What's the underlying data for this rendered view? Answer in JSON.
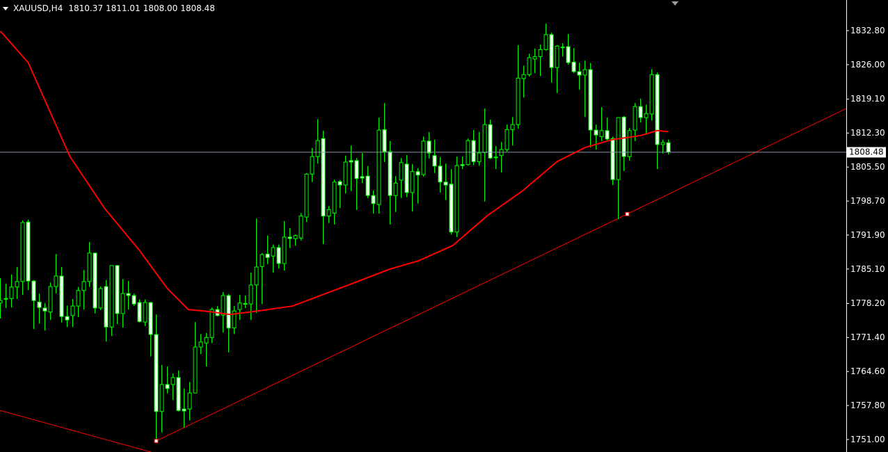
{
  "header": {
    "symbol": "XAUUSD,H4",
    "open": "1810.37",
    "high": "1811.01",
    "low": "1808.00",
    "close": "1808.48"
  },
  "price_axis": {
    "labels": [
      "1832.80",
      "1826.00",
      "1819.10",
      "1812.30",
      "1805.50",
      "1798.70",
      "1791.90",
      "1785.10",
      "1778.20",
      "1771.40",
      "1764.60",
      "1757.80",
      "1751.00"
    ],
    "current_price": "1808.48"
  },
  "colors": {
    "background": "#000000",
    "bull_outline": "#00ff00",
    "bear_fill": "#ffffff",
    "ma_line": "#ff0000",
    "trendline": "#ff0000",
    "bid_line": "#8a94a6",
    "axis": "#ffffff"
  },
  "icons": {
    "symbol_menu": "triangle-down-icon",
    "chart_shift": "chart-shift-marker-icon"
  },
  "chart_data": {
    "type": "candlestick",
    "symbol": "XAUUSD",
    "timeframe": "H4",
    "ylim": [
      1751.0,
      1832.8
    ],
    "grid": false,
    "candles_ohlc": [
      [
        1778.3,
        1783.3,
        1775.2,
        1778.8
      ],
      [
        1779.2,
        1782.2,
        1777.3,
        1779.2
      ],
      [
        1779.2,
        1784.0,
        1777.4,
        1781.5
      ],
      [
        1781.5,
        1785.5,
        1779.1,
        1782.6
      ],
      [
        1782.6,
        1794.8,
        1779.9,
        1794.4
      ],
      [
        1794.5,
        1795.0,
        1780.9,
        1782.7
      ],
      [
        1782.7,
        1782.9,
        1773.1,
        1778.8
      ],
      [
        1778.5,
        1780.2,
        1774.2,
        1777.4
      ],
      [
        1777.3,
        1778.3,
        1772.8,
        1776.7
      ],
      [
        1776.5,
        1782.4,
        1774.9,
        1781.6
      ],
      [
        1781.6,
        1788.1,
        1780.2,
        1783.7
      ],
      [
        1783.7,
        1785.5,
        1774.4,
        1775.6
      ],
      [
        1775.6,
        1777.8,
        1773.5,
        1774.9
      ],
      [
        1775.8,
        1779.1,
        1773.5,
        1777.7
      ],
      [
        1777.7,
        1781.5,
        1775.5,
        1780.8
      ],
      [
        1780.8,
        1784.9,
        1777.0,
        1782.6
      ],
      [
        1782.6,
        1790.5,
        1781.5,
        1788.3
      ],
      [
        1788.3,
        1788.3,
        1776.2,
        1777.3
      ],
      [
        1777.3,
        1781.6,
        1776.9,
        1781.2
      ],
      [
        1781.6,
        1782.9,
        1770.6,
        1773.5
      ],
      [
        1773.5,
        1785.8,
        1771.7,
        1785.8
      ],
      [
        1785.8,
        1785.9,
        1774.1,
        1776.2
      ],
      [
        1776.2,
        1783.1,
        1773.4,
        1780.2
      ],
      [
        1780.2,
        1782.7,
        1777.0,
        1779.8
      ],
      [
        1779.8,
        1780.2,
        1777.7,
        1778.1
      ],
      [
        1778.4,
        1779.0,
        1774.4,
        1774.6
      ],
      [
        1774.5,
        1779.0,
        1773.7,
        1778.4
      ],
      [
        1778.4,
        1778.5,
        1767.6,
        1772.0
      ],
      [
        1772.0,
        1776.0,
        1750.7,
        1756.6
      ],
      [
        1756.6,
        1765.9,
        1752.4,
        1762.0
      ],
      [
        1762.0,
        1765.6,
        1760.2,
        1761.2
      ],
      [
        1762.0,
        1764.2,
        1758.9,
        1763.4
      ],
      [
        1763.4,
        1764.8,
        1756.6,
        1756.8
      ],
      [
        1757.1,
        1761.2,
        1753.4,
        1756.7
      ],
      [
        1757.1,
        1762.5,
        1754.8,
        1760.3
      ],
      [
        1760.3,
        1774.5,
        1760.3,
        1769.5
      ],
      [
        1769.5,
        1772.1,
        1768.1,
        1770.5
      ],
      [
        1770.3,
        1772.3,
        1765.6,
        1771.4
      ],
      [
        1771.4,
        1777.4,
        1770.3,
        1777.0
      ],
      [
        1777.0,
        1777.7,
        1775.6,
        1775.8
      ],
      [
        1775.9,
        1780.5,
        1772.4,
        1779.8
      ],
      [
        1779.8,
        1780.1,
        1768.4,
        1773.3
      ],
      [
        1773.3,
        1777.7,
        1772.1,
        1776.7
      ],
      [
        1777.0,
        1779.9,
        1774.9,
        1778.3
      ],
      [
        1778.1,
        1779.8,
        1777.3,
        1778.2
      ],
      [
        1778.1,
        1784.4,
        1774.9,
        1781.9
      ],
      [
        1781.9,
        1795.2,
        1776.3,
        1785.5
      ],
      [
        1785.6,
        1788.3,
        1778.1,
        1788.0
      ],
      [
        1788.1,
        1791.8,
        1786.1,
        1787.4
      ],
      [
        1787.7,
        1790.0,
        1784.4,
        1789.4
      ],
      [
        1789.4,
        1790.0,
        1785.2,
        1786.2
      ],
      [
        1786.2,
        1794.7,
        1784.8,
        1791.5
      ],
      [
        1791.5,
        1793.3,
        1789.3,
        1791.2
      ],
      [
        1791.2,
        1792.0,
        1789.8,
        1791.8
      ],
      [
        1791.3,
        1796.3,
        1790.8,
        1795.7
      ],
      [
        1795.5,
        1804.3,
        1794.5,
        1804.1
      ],
      [
        1804.1,
        1809.3,
        1802.5,
        1807.6
      ],
      [
        1807.6,
        1815.1,
        1806.2,
        1810.8
      ],
      [
        1811.2,
        1812.8,
        1790.1,
        1795.7
      ],
      [
        1795.7,
        1797.7,
        1794.3,
        1797.0
      ],
      [
        1796.3,
        1803.0,
        1794.0,
        1802.5
      ],
      [
        1802.6,
        1802.9,
        1797.3,
        1801.9
      ],
      [
        1801.9,
        1807.8,
        1800.2,
        1806.5
      ],
      [
        1806.8,
        1809.8,
        1800.7,
        1806.5
      ],
      [
        1806.8,
        1807.3,
        1796.9,
        1803.2
      ],
      [
        1803.6,
        1808.3,
        1802.3,
        1803.3
      ],
      [
        1803.7,
        1805.7,
        1799.3,
        1799.8
      ],
      [
        1799.8,
        1800.8,
        1796.2,
        1798.2
      ],
      [
        1798.0,
        1815.4,
        1796.2,
        1812.9
      ],
      [
        1813.0,
        1818.3,
        1806.5,
        1808.6
      ],
      [
        1808.6,
        1810.7,
        1794.0,
        1799.8
      ],
      [
        1799.8,
        1803.7,
        1796.5,
        1802.3
      ],
      [
        1802.9,
        1807.3,
        1799.3,
        1806.4
      ],
      [
        1806.1,
        1807.9,
        1799.5,
        1800.4
      ],
      [
        1800.4,
        1806.1,
        1796.6,
        1804.6
      ],
      [
        1804.6,
        1805.3,
        1798.2,
        1803.9
      ],
      [
        1804.0,
        1811.6,
        1803.6,
        1810.7
      ],
      [
        1810.7,
        1812.5,
        1807.2,
        1808.3
      ],
      [
        1807.8,
        1811.0,
        1804.3,
        1805.7
      ],
      [
        1805.7,
        1807.5,
        1800.4,
        1802.5
      ],
      [
        1802.5,
        1806.2,
        1798.9,
        1801.9
      ],
      [
        1802.1,
        1805.1,
        1792.0,
        1792.5
      ],
      [
        1792.5,
        1807.6,
        1791.5,
        1805.8
      ],
      [
        1806.0,
        1807.6,
        1805.1,
        1805.8
      ],
      [
        1806.0,
        1811.2,
        1805.8,
        1810.8
      ],
      [
        1810.8,
        1812.9,
        1805.9,
        1806.6
      ],
      [
        1806.6,
        1812.5,
        1805.8,
        1808.3
      ],
      [
        1808.4,
        1817.2,
        1798.6,
        1814.0
      ],
      [
        1814.0,
        1815.0,
        1807.1,
        1807.3
      ],
      [
        1807.5,
        1809.7,
        1805.1,
        1807.4
      ],
      [
        1807.8,
        1810.5,
        1804.4,
        1809.0
      ],
      [
        1809.0,
        1814.0,
        1808.6,
        1813.0
      ],
      [
        1813.0,
        1815.5,
        1809.8,
        1814.0
      ],
      [
        1814.0,
        1829.9,
        1813.2,
        1823.3
      ],
      [
        1823.2,
        1825.8,
        1819.4,
        1824.0
      ],
      [
        1824.0,
        1828.2,
        1823.6,
        1827.4
      ],
      [
        1827.1,
        1829.2,
        1824.3,
        1827.6
      ],
      [
        1827.6,
        1830.0,
        1823.7,
        1829.0
      ],
      [
        1829.0,
        1834.2,
        1828.8,
        1832.0
      ],
      [
        1832.0,
        1832.4,
        1822.4,
        1825.4
      ],
      [
        1825.4,
        1829.9,
        1820.3,
        1829.7
      ],
      [
        1829.5,
        1830.3,
        1827.6,
        1829.5
      ],
      [
        1829.6,
        1832.1,
        1826.0,
        1826.4
      ],
      [
        1826.5,
        1829.3,
        1824.3,
        1824.6
      ],
      [
        1824.6,
        1826.4,
        1821.0,
        1823.9
      ],
      [
        1823.9,
        1826.8,
        1815.5,
        1825.0
      ],
      [
        1825.0,
        1826.3,
        1809.4,
        1812.9
      ],
      [
        1812.9,
        1814.0,
        1809.0,
        1811.9
      ],
      [
        1811.6,
        1817.5,
        1810.7,
        1812.8
      ],
      [
        1812.8,
        1815.4,
        1810.7,
        1811.1
      ],
      [
        1811.2,
        1811.6,
        1801.9,
        1803.0
      ],
      [
        1803.0,
        1815.5,
        1795.1,
        1815.4
      ],
      [
        1815.5,
        1815.7,
        1804.7,
        1807.6
      ],
      [
        1807.6,
        1813.3,
        1806.8,
        1812.8
      ],
      [
        1812.9,
        1818.3,
        1810.7,
        1817.6
      ],
      [
        1817.6,
        1819.2,
        1814.4,
        1815.4
      ],
      [
        1815.4,
        1818.0,
        1812.2,
        1816.2
      ],
      [
        1816.1,
        1825.1,
        1814.8,
        1824.0
      ],
      [
        1824.0,
        1824.4,
        1805.1,
        1810.0
      ],
      [
        1810.0,
        1811.0,
        1808.2,
        1810.4
      ],
      [
        1810.37,
        1811.01,
        1808.0,
        1808.48
      ]
    ],
    "moving_average": [
      [
        0,
        1832.7
      ],
      [
        5,
        1826.4
      ],
      [
        12.5,
        1807.6
      ],
      [
        18.75,
        1797.2
      ],
      [
        25,
        1788.8
      ],
      [
        30,
        1781.2
      ],
      [
        33.75,
        1777.0
      ],
      [
        37.5,
        1776.6
      ],
      [
        41.25,
        1776.0
      ],
      [
        47.5,
        1776.9
      ],
      [
        52.5,
        1777.7
      ],
      [
        57.5,
        1779.8
      ],
      [
        62.5,
        1781.9
      ],
      [
        70,
        1785.1
      ],
      [
        75,
        1786.7
      ],
      [
        81.25,
        1789.8
      ],
      [
        87.5,
        1795.8
      ],
      [
        93.75,
        1800.7
      ],
      [
        100,
        1806.6
      ],
      [
        105,
        1809.4
      ],
      [
        110,
        1811.0
      ],
      [
        115,
        1811.8
      ],
      [
        118,
        1812.8
      ],
      [
        120,
        1812.6
      ]
    ],
    "trendlines": [
      {
        "from": [
          28,
          1750.7
        ],
        "to": [
          112.6,
          1796.1
        ],
        "anchors": true
      },
      {
        "from": [
          0,
          1756.8
        ],
        "to": [
          27,
          1748.5
        ],
        "anchors": false
      }
    ],
    "bid_line": 1808.48
  }
}
